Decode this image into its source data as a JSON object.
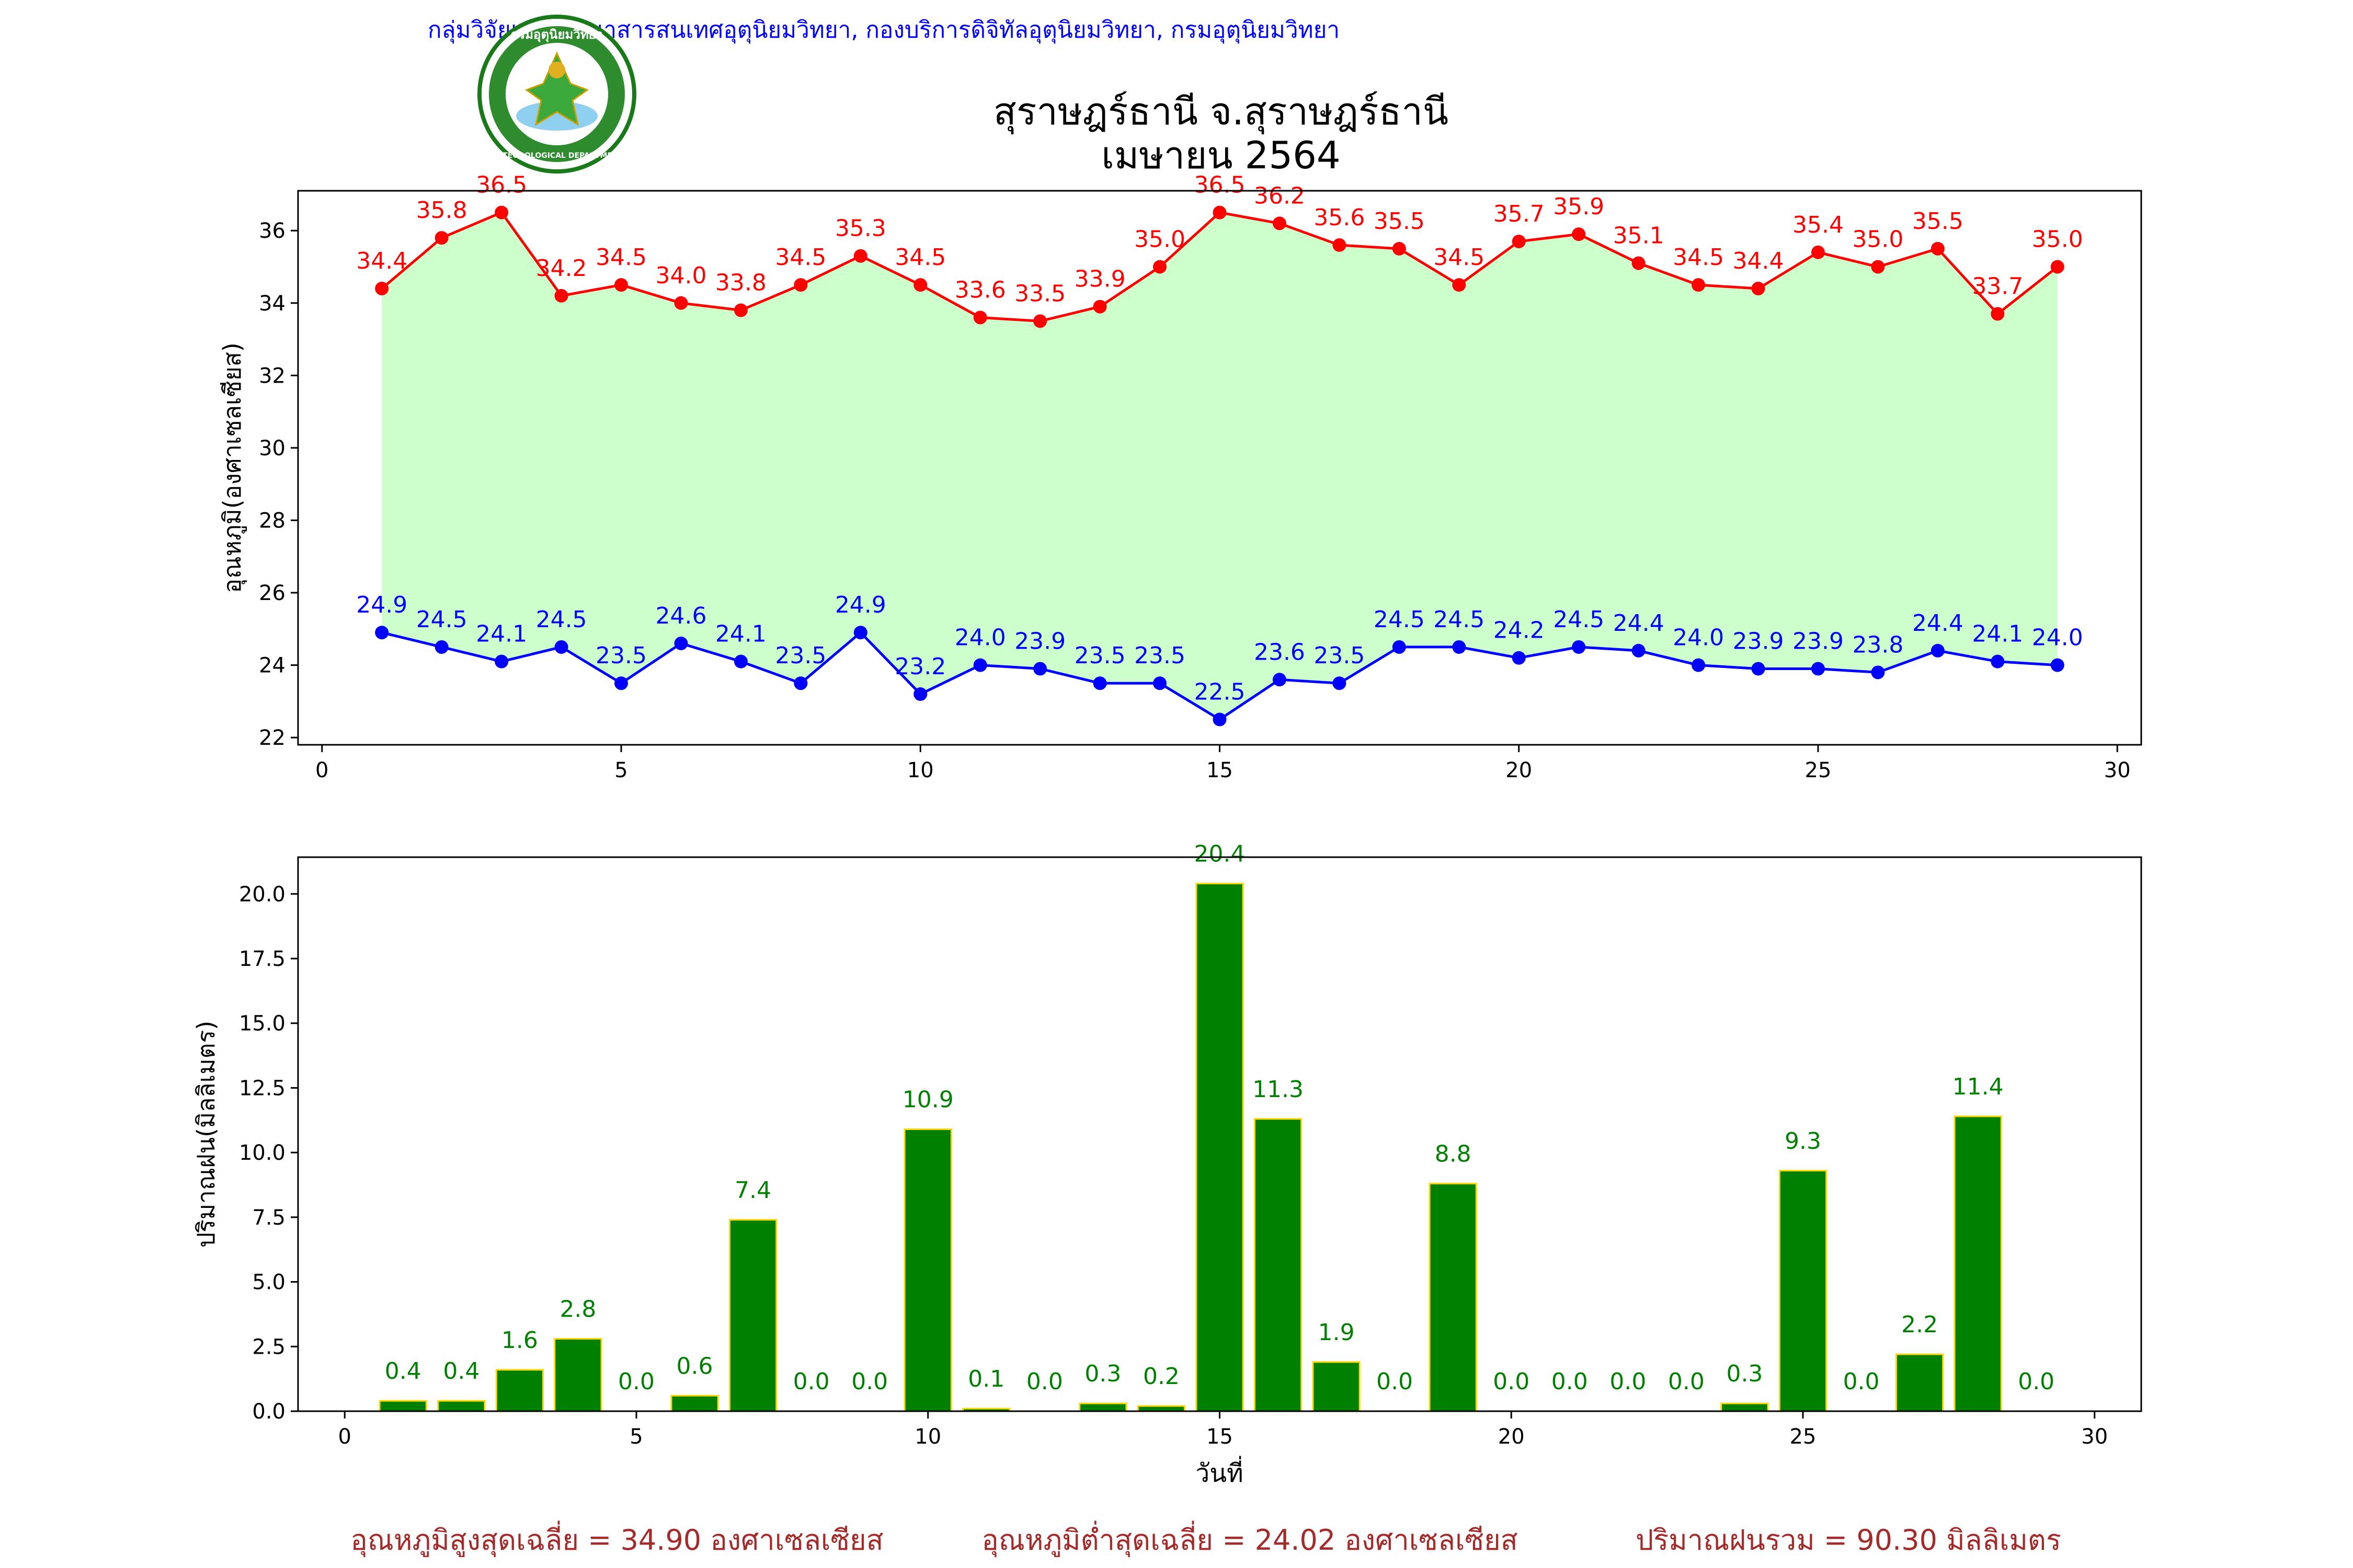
{
  "header": {
    "agency": "กลุ่มวิจัยและพัฒนาสารสนเทศอุตุนิยมวิทยา, กองบริการดิจิทัลอุตุนิยมวิทยา, กรมอุตุนิยมวิทยา",
    "title_line1": "สุราษฎร์ธานี จ.สุราษฎร์ธานี",
    "title_line2": "เมษายน 2564",
    "logo_text_top": "กรมอุตุนิยมวิทยา",
    "logo_text_bottom": "METEOROLOGICAL DEPARTMENT"
  },
  "colors": {
    "max": "#ff0000",
    "min": "#0000ff",
    "fill": "#ccffcc",
    "rain_bar": "#008000",
    "rain_edge": "#ffd700",
    "rain_label": "#008000",
    "agency": "#0000ff",
    "summary": "#a52a2a"
  },
  "chart_data": [
    {
      "type": "line",
      "title": "",
      "xlabel": "",
      "ylabel": "อุณหภูมิ(องศาเซลเซียส)",
      "x": [
        1,
        2,
        3,
        4,
        5,
        6,
        7,
        8,
        9,
        10,
        11,
        12,
        13,
        14,
        15,
        16,
        17,
        18,
        19,
        20,
        21,
        22,
        23,
        24,
        25,
        26,
        27,
        28,
        29
      ],
      "xlim": [
        -0.4,
        30.4
      ],
      "ylim": [
        21.8,
        37.1
      ],
      "xticks": [
        0,
        5,
        10,
        15,
        20,
        25,
        30
      ],
      "yticks": [
        22,
        24,
        26,
        28,
        30,
        32,
        34,
        36
      ],
      "fill_between": true,
      "series": [
        {
          "key": "max",
          "values": [
            34.4,
            35.8,
            36.5,
            34.2,
            34.5,
            34.0,
            33.8,
            34.5,
            35.3,
            34.5,
            33.6,
            33.5,
            33.9,
            35.0,
            36.5,
            36.2,
            35.6,
            35.5,
            34.5,
            35.7,
            35.9,
            35.1,
            34.5,
            34.4,
            35.4,
            35.0,
            35.5,
            33.7,
            35.0
          ]
        },
        {
          "key": "min",
          "values": [
            24.9,
            24.5,
            24.1,
            24.5,
            23.5,
            24.6,
            24.1,
            23.5,
            24.9,
            23.2,
            24.0,
            23.9,
            23.5,
            23.5,
            22.5,
            23.6,
            23.5,
            24.5,
            24.5,
            24.2,
            24.5,
            24.4,
            24.0,
            23.9,
            23.9,
            23.8,
            24.4,
            24.1,
            24.0
          ]
        }
      ]
    },
    {
      "type": "bar",
      "title": "",
      "xlabel": "วันที่",
      "ylabel": "ปริมาณฝน(มิลลิเมตร)",
      "x": [
        1,
        2,
        3,
        4,
        5,
        6,
        7,
        8,
        9,
        10,
        11,
        12,
        13,
        14,
        15,
        16,
        17,
        18,
        19,
        20,
        21,
        22,
        23,
        24,
        25,
        26,
        27,
        28,
        29
      ],
      "values": [
        0.4,
        0.4,
        1.6,
        2.8,
        0.0,
        0.6,
        7.4,
        0.0,
        0.0,
        10.9,
        0.1,
        0.0,
        0.3,
        0.2,
        20.4,
        11.3,
        1.9,
        0.0,
        8.8,
        0.0,
        0.0,
        0.0,
        0.0,
        0.3,
        9.3,
        0.0,
        2.2,
        11.4,
        0.0
      ],
      "xlim": [
        -0.8,
        30.8
      ],
      "ylim": [
        0,
        21.42
      ],
      "xticks": [
        0,
        5,
        10,
        15,
        20,
        25,
        30
      ],
      "yticks": [
        0.0,
        2.5,
        5.0,
        7.5,
        10.0,
        12.5,
        15.0,
        17.5,
        20.0
      ]
    }
  ],
  "summary": {
    "avg_max": "อุณหภูมิสูงสุดเฉลี่ย = 34.90 องศาเซลเซียส",
    "avg_min": "อุณหภูมิต่ำสุดเฉลี่ย = 24.02 องศาเซลเซียส",
    "total_rain": "ปริมาณฝนรวม = 90.30 มิลลิเมตร"
  }
}
